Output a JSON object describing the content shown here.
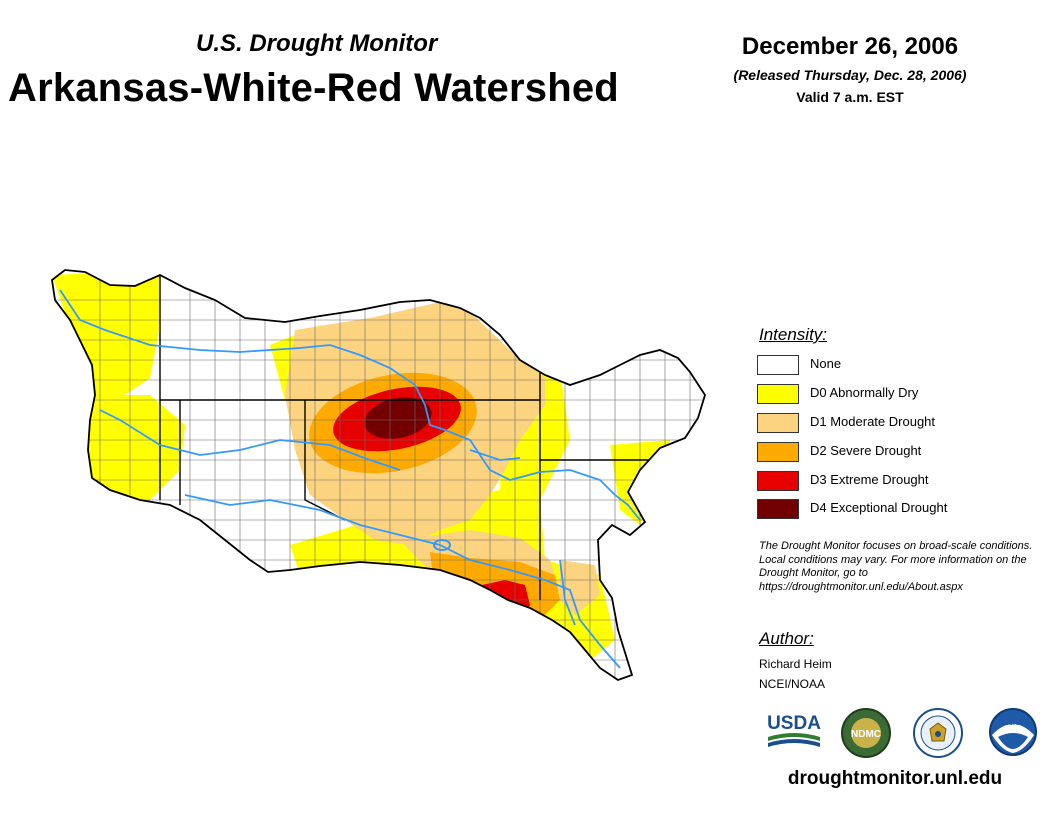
{
  "header": {
    "subtitle": "U.S. Drought Monitor",
    "title": "Arkansas-White-Red Watershed",
    "date": "December 26, 2006",
    "released": "(Released Thursday, Dec. 28, 2006)",
    "valid": "Valid 7 a.m. EST"
  },
  "legend": {
    "title": "Intensity:",
    "items": [
      {
        "label": "None",
        "color": "#ffffff"
      },
      {
        "label": "D0 Abnormally Dry",
        "color": "#ffff00"
      },
      {
        "label": "D1 Moderate Drought",
        "color": "#fcd37f"
      },
      {
        "label": "D2 Severe Drought",
        "color": "#ffaa00"
      },
      {
        "label": "D3 Extreme Drought",
        "color": "#e60000"
      },
      {
        "label": "D4 Exceptional Drought",
        "color": "#730000"
      }
    ]
  },
  "note": "The Drought Monitor focuses on broad-scale conditions. Local conditions may vary. For more information on the Drought Monitor, go to https://droughtmonitor.unl.edu/About.aspx",
  "author": {
    "title": "Author:",
    "name": "Richard Heim",
    "org": "NCEI/NOAA"
  },
  "logos": {
    "usda": "USDA",
    "ndmc": "NDMC",
    "noaa": "NOAA"
  },
  "website": "droughtmonitor.unl.edu",
  "colors": {
    "river": "#3399ff",
    "county_line": "#6b6b6b",
    "state_line": "#000000"
  }
}
